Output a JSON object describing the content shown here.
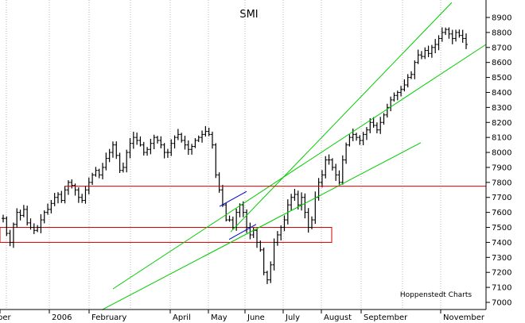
{
  "chart_data": {
    "type": "ohlc",
    "title": "SMI",
    "credit": "Hoppenstedt Charts",
    "x_tick_labels": [
      "ber",
      "2006",
      "February",
      "April",
      "May",
      "June",
      "July",
      "August",
      "September",
      "November"
    ],
    "x_months": [
      "2005-12",
      "2006-01",
      "2006-02",
      "2006-03",
      "2006-04",
      "2006-05",
      "2006-06",
      "2006-07",
      "2006-08",
      "2006-09",
      "2006-10",
      "2006-11"
    ],
    "ylim": [
      6950,
      9000
    ],
    "y_ticks": [
      7000,
      7100,
      7200,
      7300,
      7400,
      7500,
      7600,
      7700,
      7800,
      7900,
      8000,
      8100,
      8200,
      8300,
      8400,
      8500,
      8600,
      8700,
      8800,
      8900
    ],
    "grid": "vertical-months",
    "series": [
      {
        "type": "ohlc",
        "closes": [
          7560,
          7460,
          7400,
          7520,
          7600,
          7580,
          7620,
          7530,
          7500,
          7480,
          7500,
          7550,
          7600,
          7620,
          7660,
          7700,
          7720,
          7680,
          7750,
          7800,
          7780,
          7750,
          7700,
          7680,
          7750,
          7800,
          7850,
          7880,
          7850,
          7900,
          7960,
          8000,
          8050,
          7980,
          7880,
          7900,
          8000,
          8060,
          8100,
          8080,
          8050,
          8000,
          8020,
          8060,
          8100,
          8080,
          8050,
          8000,
          8000,
          8060,
          8100,
          8120,
          8080,
          8050,
          8020,
          8040,
          8080,
          8100,
          8120,
          8140,
          8120,
          8050,
          7850,
          7750,
          7650,
          7550,
          7550,
          7500,
          7600,
          7650,
          7600,
          7500,
          7450,
          7480,
          7400,
          7350,
          7200,
          7150,
          7250,
          7400,
          7450,
          7500,
          7550,
          7650,
          7700,
          7720,
          7650,
          7700,
          7600,
          7500,
          7550,
          7700,
          7800,
          7850,
          7950,
          7950,
          7900,
          7850,
          7800,
          7950,
          8050,
          8100,
          8120,
          8100,
          8080,
          8120,
          8150,
          8200,
          8180,
          8150,
          8200,
          8250,
          8300,
          8350,
          8380,
          8400,
          8420,
          8450,
          8500,
          8520,
          8600,
          8650,
          8640,
          8680,
          8660,
          8700,
          8720,
          8760,
          8800,
          8820,
          8790,
          8760,
          8800,
          8780,
          8760,
          8720
        ]
      }
    ],
    "support_lines": [
      {
        "name": "horizontal resistance",
        "value": 7775,
        "color": "#d00000"
      }
    ],
    "zones": [
      {
        "name": "support band",
        "from": 7400,
        "to": 7500,
        "color": "#d00000"
      }
    ],
    "trend_lines": [
      {
        "name": "lower channel",
        "color": "#00cc00",
        "points": [
          [
            142,
            7090
          ],
          [
            611,
            8720
          ]
        ]
      },
      {
        "name": "upper channel",
        "color": "#00cc00",
        "points": [
          [
            290,
            7470
          ],
          [
            568,
            9000
          ]
        ]
      },
      {
        "name": "long-term uptrend",
        "color": "#00cc00",
        "points": [
          [
            128,
            6950
          ],
          [
            529,
            8065
          ]
        ]
      },
      {
        "name": "flag upper",
        "color": "#0000cc",
        "points": [
          [
            276,
            7640
          ],
          [
            310,
            7740
          ]
        ]
      },
      {
        "name": "flag lower",
        "color": "#0000cc",
        "points": [
          [
            288,
            7420
          ],
          [
            322,
            7520
          ]
        ]
      }
    ]
  }
}
